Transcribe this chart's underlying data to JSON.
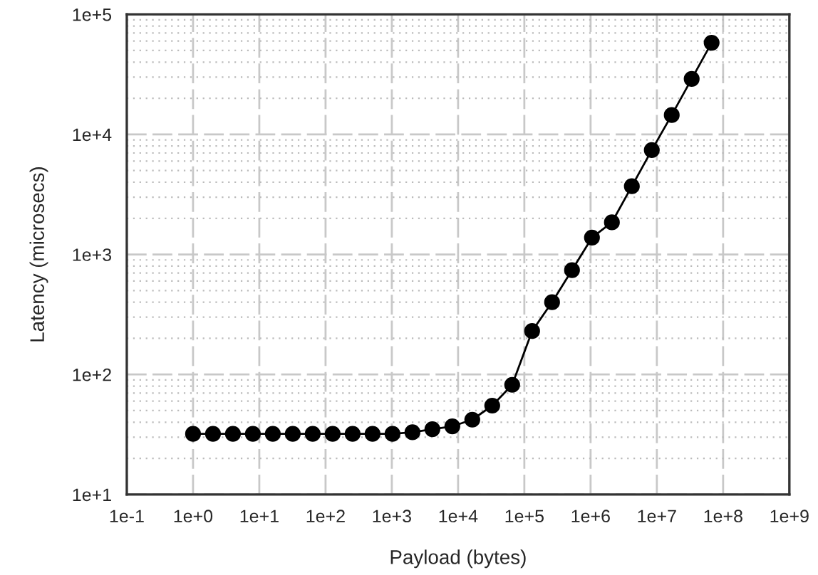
{
  "chart_data": {
    "type": "line",
    "xlabel": "Payload (bytes)",
    "ylabel": "Latency (microsecs)",
    "log": "xy",
    "x": [
      1,
      2,
      4,
      8,
      16,
      32,
      64,
      128,
      256,
      512,
      1024,
      2048,
      4096,
      8192,
      16384,
      32768,
      65536,
      131072,
      262144,
      524288,
      1048576,
      2097152,
      4194304,
      8388608,
      16777216,
      33554432,
      67108864
    ],
    "series": [
      {
        "color": "#000000",
        "values": [
          32,
          32,
          32,
          32,
          32,
          32,
          32,
          32,
          32,
          32,
          32,
          33,
          35,
          37,
          42,
          55,
          82,
          230,
          400,
          740,
          1380,
          1850,
          3700,
          7400,
          14500,
          29000,
          58000
        ]
      }
    ],
    "marker": "circle",
    "line_style": "solid",
    "grid": true,
    "xlim": [
      0.1,
      1000000000
    ],
    "ylim": [
      10,
      100000
    ],
    "xticks": [
      {
        "value": 0.1,
        "label": "1e-1"
      },
      {
        "value": 1,
        "label": "1e+0"
      },
      {
        "value": 10,
        "label": "1e+1"
      },
      {
        "value": 100,
        "label": "1e+2"
      },
      {
        "value": 1000,
        "label": "1e+3"
      },
      {
        "value": 10000,
        "label": "1e+4"
      },
      {
        "value": 100000,
        "label": "1e+5"
      },
      {
        "value": 1000000,
        "label": "1e+6"
      },
      {
        "value": 10000000,
        "label": "1e+7"
      },
      {
        "value": 100000000,
        "label": "1e+8"
      },
      {
        "value": 1000000000,
        "label": "1e+9"
      }
    ],
    "yticks": [
      {
        "value": 10,
        "label": "1e+1"
      },
      {
        "value": 100,
        "label": "1e+2"
      },
      {
        "value": 1000,
        "label": "1e+3"
      },
      {
        "value": 10000,
        "label": "1e+4"
      },
      {
        "value": 100000,
        "label": "1e+5"
      }
    ]
  }
}
